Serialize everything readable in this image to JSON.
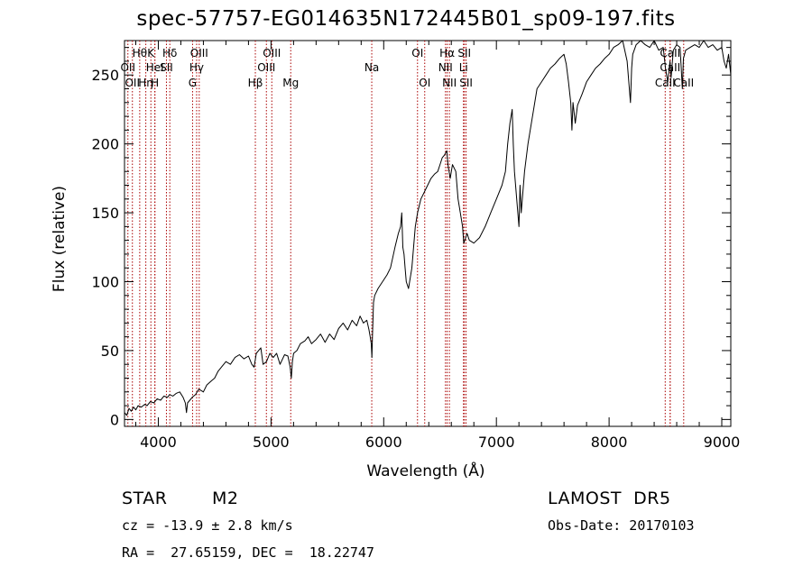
{
  "chart_data": {
    "type": "line",
    "title": "spec-57757-EG014635N172445B01_sp09-197.fits",
    "xlabel": "Wavelength (Å)",
    "ylabel": "Flux (relative)",
    "xlim": [
      3700,
      9080
    ],
    "ylim": [
      -5,
      275
    ],
    "xticks": [
      4000,
      5000,
      6000,
      7000,
      8000,
      9000
    ],
    "yticks": [
      0,
      50,
      100,
      150,
      200,
      250
    ],
    "grid": false,
    "line_color": "#000000",
    "marker_color": "#aa0000",
    "series": [
      {
        "x": [
          3700,
          3720,
          3740,
          3760,
          3780,
          3800,
          3820,
          3850,
          3880,
          3900,
          3930,
          3960,
          3990,
          4020,
          4050,
          4080,
          4100,
          4130,
          4160,
          4190,
          4220,
          4240,
          4250,
          4260,
          4280,
          4300,
          4330,
          4360,
          4400,
          4430,
          4470,
          4500,
          4530,
          4560,
          4600,
          4640,
          4680,
          4720,
          4760,
          4800,
          4830,
          4850,
          4870,
          4890,
          4910,
          4930,
          4960,
          4990,
          5020,
          5050,
          5080,
          5120,
          5150,
          5170,
          5180,
          5190,
          5200,
          5230,
          5260,
          5300,
          5330,
          5360,
          5400,
          5440,
          5480,
          5520,
          5560,
          5600,
          5640,
          5680,
          5720,
          5760,
          5790,
          5820,
          5850,
          5870,
          5880,
          5890,
          5895,
          5900,
          5910,
          5920,
          5950,
          5990,
          6030,
          6060,
          6100,
          6130,
          6150,
          6160,
          6170,
          6180,
          6190,
          6200,
          6220,
          6250,
          6280,
          6300,
          6330,
          6360,
          6390,
          6420,
          6450,
          6480,
          6500,
          6520,
          6540,
          6560,
          6570,
          6590,
          6610,
          6640,
          6660,
          6680,
          6700,
          6710,
          6720,
          6740,
          6760,
          6800,
          6850,
          6900,
          6950,
          7000,
          7050,
          7080,
          7100,
          7120,
          7140,
          7150,
          7160,
          7180,
          7200,
          7210,
          7220,
          7250,
          7280,
          7320,
          7360,
          7400,
          7440,
          7480,
          7520,
          7560,
          7600,
          7620,
          7640,
          7660,
          7670,
          7680,
          7700,
          7720,
          7760,
          7800,
          7840,
          7880,
          7920,
          7960,
          8000,
          8040,
          8080,
          8120,
          8160,
          8190,
          8200,
          8210,
          8240,
          8280,
          8320,
          8360,
          8400,
          8440,
          8480,
          8500,
          8520,
          8540,
          8550,
          8570,
          8600,
          8630,
          8650,
          8660,
          8680,
          8720,
          8760,
          8800,
          8840,
          8880,
          8920,
          8960,
          9000,
          9020,
          9040,
          9060,
          9080
        ],
        "y": [
          5,
          3,
          8,
          6,
          9,
          7,
          10,
          9,
          11,
          10,
          13,
          12,
          15,
          14,
          17,
          16,
          18,
          17,
          19,
          20,
          16,
          12,
          5,
          12,
          14,
          16,
          18,
          22,
          20,
          25,
          28,
          30,
          35,
          38,
          42,
          40,
          45,
          47,
          44,
          46,
          40,
          38,
          48,
          50,
          52,
          40,
          42,
          48,
          45,
          48,
          40,
          47,
          46,
          38,
          30,
          42,
          48,
          50,
          55,
          57,
          60,
          55,
          58,
          62,
          56,
          62,
          58,
          66,
          70,
          65,
          72,
          68,
          75,
          70,
          72,
          65,
          60,
          55,
          45,
          60,
          85,
          90,
          95,
          100,
          105,
          110,
          125,
          135,
          140,
          150,
          125,
          120,
          110,
          100,
          95,
          110,
          140,
          150,
          160,
          165,
          170,
          175,
          178,
          180,
          185,
          190,
          192,
          195,
          185,
          175,
          185,
          180,
          160,
          150,
          140,
          128,
          130,
          135,
          130,
          128,
          132,
          140,
          150,
          160,
          170,
          180,
          200,
          215,
          225,
          200,
          180,
          160,
          140,
          170,
          150,
          180,
          200,
          220,
          240,
          245,
          250,
          255,
          258,
          262,
          265,
          258,
          245,
          230,
          210,
          230,
          215,
          228,
          236,
          245,
          250,
          255,
          258,
          262,
          265,
          270,
          272,
          275,
          260,
          230,
          255,
          265,
          272,
          275,
          272,
          270,
          275,
          268,
          270,
          255,
          245,
          260,
          248,
          268,
          272,
          270,
          240,
          262,
          268,
          270,
          272,
          270,
          275,
          270,
          272,
          268,
          270,
          260,
          255,
          265,
          250
        ]
      }
    ],
    "lines": [
      {
        "x": 3730,
        "label": "OII",
        "row": 2
      },
      {
        "x": 3770,
        "label": "OII",
        "row": 3
      },
      {
        "x": 3835,
        "label": "Hθ",
        "row": 1
      },
      {
        "x": 3889,
        "label": "Hη",
        "row": 3
      },
      {
        "x": 3934,
        "label": "K",
        "row": 1
      },
      {
        "x": 3969,
        "label": "H",
        "row": 3
      },
      {
        "x": 3970,
        "label": "HeI",
        "row": 2
      },
      {
        "x": 4072,
        "label": "SII",
        "row": 2
      },
      {
        "x": 4102,
        "label": "Hδ",
        "row": 1
      },
      {
        "x": 4304,
        "label": "G",
        "row": 3
      },
      {
        "x": 4340,
        "label": "Hγ",
        "row": 2
      },
      {
        "x": 4363,
        "label": "OIII",
        "row": 1
      },
      {
        "x": 4861,
        "label": "Hβ",
        "row": 3
      },
      {
        "x": 4959,
        "label": "OIII",
        "row": 2
      },
      {
        "x": 5007,
        "label": "OIII",
        "row": 1
      },
      {
        "x": 5175,
        "label": "Mg",
        "row": 3
      },
      {
        "x": 5894,
        "label": "Na",
        "row": 2
      },
      {
        "x": 6300,
        "label": "OI",
        "row": 1
      },
      {
        "x": 6364,
        "label": "OI",
        "row": 3
      },
      {
        "x": 6548,
        "label": "NII",
        "row": 2
      },
      {
        "x": 6563,
        "label": "Hα",
        "row": 1
      },
      {
        "x": 6583,
        "label": "NII",
        "row": 3
      },
      {
        "x": 6708,
        "label": "Li",
        "row": 2
      },
      {
        "x": 6716,
        "label": "SII",
        "row": 1
      },
      {
        "x": 6731,
        "label": "SII",
        "row": 3
      },
      {
        "x": 8498,
        "label": "CaII",
        "row": 3
      },
      {
        "x": 8542,
        "label": "CaII",
        "row": 2
      },
      {
        "x": 8542,
        "label": "CaII",
        "row": 1
      },
      {
        "x": 8662,
        "label": "CaII",
        "row": 3
      }
    ]
  },
  "info": {
    "class_label": "STAR",
    "subclass": "M2",
    "survey": "LAMOST  DR5",
    "cz": "cz = -13.9 ± 2.8 km/s",
    "obs_date": "Obs-Date: 20170103",
    "radec": "RA =  27.65159, DEC =  18.22747"
  }
}
